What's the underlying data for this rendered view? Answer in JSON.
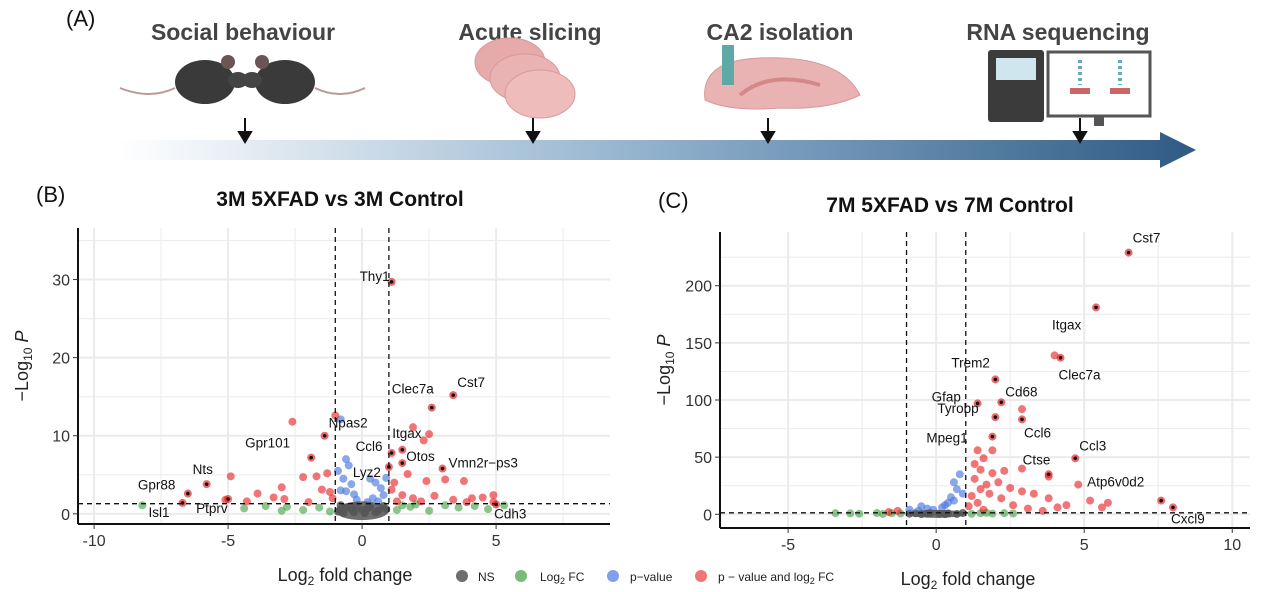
{
  "panel_a": {
    "label": "(A)",
    "steps": [
      "Social behaviour",
      "Acute slicing",
      "CA2 isolation",
      "RNA sequencing"
    ],
    "arrow_color": "#2f5a85"
  },
  "legend": {
    "items": [
      {
        "label": "NS",
        "color": "#555555"
      },
      {
        "label_pre": "Log",
        "label_sub": "2",
        "label_post": " FC",
        "color": "#3f9f3f"
      },
      {
        "label": "p−value",
        "color": "#4a78e0"
      },
      {
        "label_pre": "p − value and log",
        "label_sub": "2",
        "label_post": " FC",
        "color": "#e8191a"
      }
    ]
  },
  "chart_data": [
    {
      "type": "scatter",
      "panel_label": "(B)",
      "title": "3M 5XFAD vs 3M Control",
      "xlabel": {
        "pre": "Log",
        "sub": "2",
        "post": " fold change"
      },
      "ylabel": {
        "pre": "−Log",
        "sub": "10",
        "post": " ",
        "italic": "P"
      },
      "xlim": [
        -10.6,
        9.25
      ],
      "ylim": [
        -1.3,
        36.6
      ],
      "xticks": [
        -10,
        -5,
        0,
        5
      ],
      "yticks": [
        0,
        10,
        20,
        30
      ],
      "grid": true,
      "thresholds": {
        "log2fc": [
          -1,
          1
        ],
        "neglog10p": 1.3
      },
      "points": {
        "NS": [
          [
            -0.9,
            0.3
          ],
          [
            -0.6,
            0.8
          ],
          [
            -0.3,
            0.2
          ],
          [
            0,
            0.5
          ],
          [
            0.3,
            0.9
          ],
          [
            0.6,
            0.4
          ],
          [
            0.8,
            1.0
          ],
          [
            -0.8,
            1.1
          ],
          [
            0.1,
            0.1
          ],
          [
            -0.4,
            0.6
          ],
          [
            0.5,
            0.2
          ],
          [
            -0.2,
            1.0
          ],
          [
            0.9,
            0.6
          ],
          [
            -0.7,
            0.1
          ],
          [
            0.2,
            0.7
          ]
        ],
        "Log2FC": [
          [
            -8.2,
            1.1
          ],
          [
            -4.4,
            0.7
          ],
          [
            -3.6,
            1.0
          ],
          [
            -2.8,
            0.9
          ],
          [
            -2.2,
            0.5
          ],
          [
            -1.6,
            0.8
          ],
          [
            -1.2,
            0.3
          ],
          [
            1.3,
            0.5
          ],
          [
            1.8,
            0.9
          ],
          [
            2.5,
            0.4
          ],
          [
            3.1,
            1.1
          ],
          [
            3.6,
            0.8
          ],
          [
            4.2,
            1.0
          ],
          [
            4.7,
            0.6
          ],
          [
            5.3,
            1.1
          ],
          [
            2.0,
            1.2
          ],
          [
            -3.0,
            0.4
          ],
          [
            1.5,
            1.1
          ]
        ],
        "pvalue": [
          [
            -0.8,
            12.1
          ],
          [
            -0.6,
            7.0
          ],
          [
            -0.5,
            6.2
          ],
          [
            -0.9,
            5.5
          ],
          [
            -0.7,
            4.5
          ],
          [
            -0.4,
            3.8
          ],
          [
            -0.3,
            2.5
          ],
          [
            -0.2,
            1.8
          ],
          [
            -0.6,
            2.9
          ],
          [
            0.3,
            4.5
          ],
          [
            0.5,
            4.0
          ],
          [
            0.7,
            3.3
          ],
          [
            0.8,
            2.4
          ],
          [
            0.4,
            2.0
          ],
          [
            0.9,
            4.6
          ],
          [
            0.6,
            1.6
          ],
          [
            -0.8,
            3.0
          ],
          [
            0.2,
            1.5
          ]
        ],
        "both": [
          [
            -2.6,
            11.8
          ],
          [
            -1.0,
            12.6
          ],
          [
            -5.1,
            1.8
          ],
          [
            -4.9,
            4.8
          ],
          [
            -3.9,
            2.6
          ],
          [
            -3.3,
            2.1
          ],
          [
            -3.0,
            3.4
          ],
          [
            -2.9,
            1.9
          ],
          [
            -2.2,
            4.7
          ],
          [
            -1.7,
            4.8
          ],
          [
            -1.3,
            5.2
          ],
          [
            -1.5,
            3.1
          ],
          [
            -1.1,
            2.0
          ],
          [
            -2.0,
            1.5
          ],
          [
            -4.3,
            1.6
          ],
          [
            -1.2,
            2.8
          ],
          [
            1.9,
            11.1
          ],
          [
            2.5,
            10.2
          ],
          [
            2.3,
            9.4
          ],
          [
            1.7,
            5.1
          ],
          [
            1.2,
            4.0
          ],
          [
            2.4,
            4.2
          ],
          [
            3.1,
            4.4
          ],
          [
            3.8,
            4.2
          ],
          [
            4.9,
            2.4
          ],
          [
            4.5,
            2.1
          ],
          [
            1.5,
            2.4
          ],
          [
            1.9,
            2.0
          ],
          [
            2.7,
            2.3
          ],
          [
            3.4,
            1.8
          ],
          [
            1.3,
            1.6
          ],
          [
            2.2,
            1.6
          ],
          [
            3.9,
            1.5
          ],
          [
            4.1,
            2.0
          ],
          [
            1.1,
            3.1
          ],
          [
            4.9,
            1.5
          ]
        ]
      },
      "labeled_genes": [
        {
          "gene": "Thy1",
          "x": 1.1,
          "y": 29.7
        },
        {
          "gene": "Cst7",
          "x": 3.4,
          "y": 15.2
        },
        {
          "gene": "Clec7a",
          "x": 2.6,
          "y": 13.6
        },
        {
          "gene": "Npas2",
          "x": -1.4,
          "y": 10.0
        },
        {
          "gene": "Gpr101",
          "x": -1.9,
          "y": 7.2
        },
        {
          "gene": "Itgax",
          "x": 1.5,
          "y": 8.2
        },
        {
          "gene": "Ccl6",
          "x": 1.1,
          "y": 7.8
        },
        {
          "gene": "Otos",
          "x": 1.5,
          "y": 6.5
        },
        {
          "gene": "Vmn2r−ps3",
          "x": 3.0,
          "y": 5.8
        },
        {
          "gene": "Lyz2",
          "x": 1.0,
          "y": 6.0
        },
        {
          "gene": "Nts",
          "x": -5.8,
          "y": 3.8
        },
        {
          "gene": "Gpr88",
          "x": -6.5,
          "y": 2.6
        },
        {
          "gene": "Isl1",
          "x": -6.7,
          "y": 1.4
        },
        {
          "gene": "Ptprv",
          "x": -5.0,
          "y": 1.9
        },
        {
          "gene": "Cdh3",
          "x": 5.0,
          "y": 1.2
        }
      ]
    },
    {
      "type": "scatter",
      "panel_label": "(C)",
      "title": "7M 5XFAD vs 7M Control",
      "xlabel": {
        "pre": "Log",
        "sub": "2",
        "post": " fold change"
      },
      "ylabel": {
        "pre": "−Log",
        "sub": "10",
        "post": " ",
        "italic": "P"
      },
      "xlim": [
        -7.3,
        10.6
      ],
      "ylim": [
        -12,
        247
      ],
      "xticks": [
        -5,
        0,
        5,
        10
      ],
      "yticks": [
        0,
        50,
        100,
        150,
        200
      ],
      "grid": true,
      "thresholds": {
        "log2fc": [
          -1,
          1
        ],
        "neglog10p": 1.3
      },
      "points": {
        "NS": [
          [
            -0.9,
            0.5
          ],
          [
            -0.5,
            0.2
          ],
          [
            -0.2,
            1.0
          ],
          [
            0.1,
            0.4
          ],
          [
            0.4,
            0.8
          ],
          [
            0.7,
            0.3
          ],
          [
            0.9,
            1.1
          ],
          [
            -0.7,
            0.9
          ],
          [
            0.3,
            0.1
          ],
          [
            -0.3,
            0.6
          ]
        ],
        "Log2FC": [
          [
            -3.4,
            1.0
          ],
          [
            -2.9,
            0.8
          ],
          [
            -2.6,
            0.5
          ],
          [
            -2.0,
            1.1
          ],
          [
            -1.5,
            0.9
          ],
          [
            -1.2,
            0.6
          ],
          [
            1.2,
            0.4
          ],
          [
            1.5,
            0.9
          ],
          [
            1.9,
            0.6
          ],
          [
            2.3,
            1.0
          ],
          [
            2.6,
            0.7
          ],
          [
            1.7,
            1.2
          ],
          [
            -1.8,
            0.3
          ]
        ],
        "pvalue": [
          [
            0.8,
            35
          ],
          [
            0.6,
            28
          ],
          [
            0.7,
            22
          ],
          [
            0.5,
            15
          ],
          [
            0.4,
            10
          ],
          [
            0.2,
            6
          ],
          [
            -0.1,
            4
          ],
          [
            -0.3,
            5
          ],
          [
            -0.6,
            3
          ],
          [
            -0.9,
            4
          ],
          [
            0.9,
            18
          ],
          [
            0.3,
            8
          ],
          [
            0.6,
            12
          ],
          [
            -0.5,
            7
          ]
        ],
        "both": [
          [
            1.4,
            56
          ],
          [
            1.9,
            56
          ],
          [
            1.6,
            49
          ],
          [
            1.3,
            44
          ],
          [
            1.5,
            39
          ],
          [
            1.9,
            36
          ],
          [
            2.3,
            38
          ],
          [
            2.1,
            28
          ],
          [
            1.7,
            26
          ],
          [
            1.3,
            31
          ],
          [
            1.5,
            22
          ],
          [
            2.5,
            23
          ],
          [
            2.9,
            20
          ],
          [
            3.3,
            18
          ],
          [
            3.8,
            14
          ],
          [
            4.4,
            8
          ],
          [
            4.1,
            6
          ],
          [
            5.2,
            12
          ],
          [
            5.8,
            10
          ],
          [
            5.6,
            6
          ],
          [
            4.8,
            26
          ],
          [
            2.9,
            40
          ],
          [
            3.8,
            33
          ],
          [
            2.2,
            14
          ],
          [
            1.8,
            18
          ],
          [
            1.2,
            16
          ],
          [
            1.4,
            10
          ],
          [
            2.6,
            8
          ],
          [
            3.1,
            5
          ],
          [
            3.6,
            3
          ],
          [
            1.1,
            7
          ],
          [
            1.6,
            4
          ],
          [
            -1.6,
            2
          ],
          [
            -1.3,
            3
          ],
          [
            2.9,
            92
          ],
          [
            4.0,
            139
          ]
        ]
      },
      "labeled_genes": [
        {
          "gene": "Cst7",
          "x": 6.5,
          "y": 229
        },
        {
          "gene": "Itgax",
          "x": 5.4,
          "y": 181
        },
        {
          "gene": "Clec7a",
          "x": 4.2,
          "y": 137
        },
        {
          "gene": "Trem2",
          "x": 2.0,
          "y": 118
        },
        {
          "gene": "Gfap",
          "x": 1.4,
          "y": 97
        },
        {
          "gene": "Cd68",
          "x": 2.2,
          "y": 98
        },
        {
          "gene": "Tyrobp",
          "x": 2.0,
          "y": 85
        },
        {
          "gene": "Ccl6",
          "x": 2.9,
          "y": 83
        },
        {
          "gene": "Mpeg1",
          "x": 1.9,
          "y": 68
        },
        {
          "gene": "Ccl3",
          "x": 4.7,
          "y": 49
        },
        {
          "gene": "Ctse",
          "x": 3.8,
          "y": 35
        },
        {
          "gene": "Atp6v0d2",
          "x": 7.6,
          "y": 12
        },
        {
          "gene": "Cxcl9",
          "x": 8.0,
          "y": 6
        }
      ]
    }
  ]
}
